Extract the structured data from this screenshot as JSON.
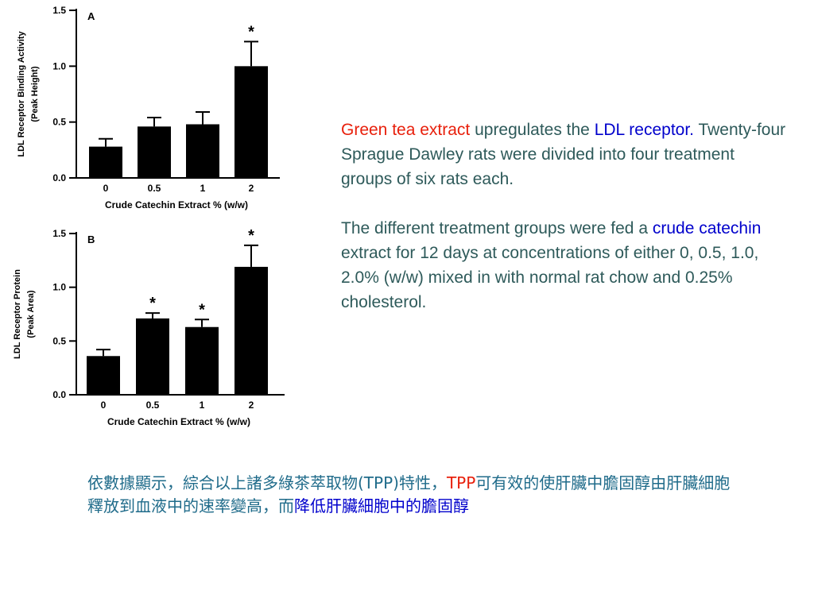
{
  "chart_data": [
    {
      "type": "bar",
      "panel_label": "A",
      "categories": [
        "0",
        "0.5",
        "1",
        "2"
      ],
      "values": [
        0.28,
        0.46,
        0.48,
        1.0
      ],
      "errors": [
        0.07,
        0.08,
        0.11,
        0.22
      ],
      "significance": [
        "",
        "",
        "",
        "*"
      ],
      "ylabel_lines": [
        "LDL Receptor Binding Activity",
        "(Peak Height)"
      ],
      "xlabel": "Crude Catechin Extract % (w/w)",
      "yticks": [
        "0.0",
        "0.5",
        "1.0",
        "1.5"
      ],
      "ylim": [
        0,
        1.5
      ],
      "bar_color": "#000000"
    },
    {
      "type": "bar",
      "panel_label": "B",
      "categories": [
        "0",
        "0.5",
        "1",
        "2"
      ],
      "values": [
        0.36,
        0.71,
        0.63,
        1.19
      ],
      "errors": [
        0.06,
        0.05,
        0.07,
        0.2
      ],
      "significance": [
        "",
        "*",
        "*",
        "*"
      ],
      "ylabel_lines": [
        "LDL Receptor Protein",
        "(Peak Area)"
      ],
      "xlabel": "Crude Catechin Extract % (w/w)",
      "yticks": [
        "0.0",
        "0.5",
        "1.0",
        "1.5"
      ],
      "ylim": [
        0,
        1.5
      ],
      "bar_color": "#000000"
    }
  ],
  "description": {
    "p1": {
      "green_tea": "Green tea extract",
      "mid": " upregulates the ",
      "ldl": "LDL receptor.",
      "rest": " Twenty-four Sprague Dawley rats were divided into four treatment groups of six rats each."
    },
    "p2": {
      "start": "The different treatment groups were fed a ",
      "crude": "crude catechin",
      "rest": " extract for 12 days at concentrations of either 0, 0.5, 1.0, 2.0% (w/w) mixed in with normal rat chow and 0.25% cholesterol."
    },
    "colors": {
      "body_text": "#2e5a5a",
      "highlight_red": "#e8200c",
      "highlight_blue": "#0000cc"
    }
  },
  "chinese": {
    "part1": "依數據顯示，綜合以上諸多綠茶萃取物(TPP)特性，",
    "tpp": "TPP",
    "part2": "可有效的使肝臟中膽固醇由肝臟細胞釋放到血液中的速率變高，而",
    "highlight": "降低肝臟細胞中的膽固醇",
    "colors": {
      "text": "#1f6b8a",
      "red": "#e8200c",
      "blue": "#0000cc"
    }
  }
}
